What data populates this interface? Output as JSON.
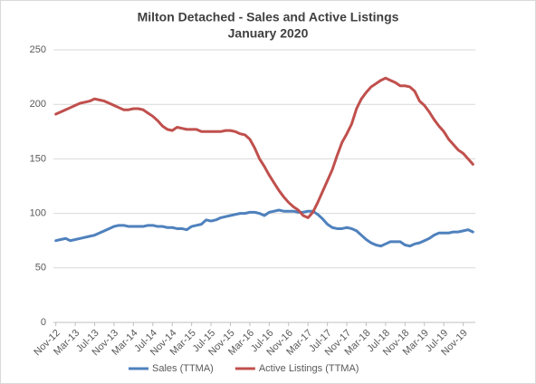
{
  "chart_data": {
    "type": "line",
    "title": "Milton Detached - Sales and Active Listings",
    "subtitle": "January 2020",
    "categories": [
      "Nov-12",
      null,
      null,
      null,
      "Mar-13",
      null,
      null,
      null,
      "Jul-13",
      null,
      null,
      null,
      "Nov-13",
      null,
      null,
      null,
      "Mar-14",
      null,
      null,
      null,
      "Jul-14",
      null,
      null,
      null,
      "Nov-14",
      null,
      null,
      null,
      "Mar-15",
      null,
      null,
      null,
      "Jul-15",
      null,
      null,
      null,
      "Nov-15",
      null,
      null,
      null,
      "Mar-16",
      null,
      null,
      null,
      "Jul-16",
      null,
      null,
      null,
      "Nov-16",
      null,
      null,
      null,
      "Mar-17",
      null,
      null,
      null,
      "Jul-17",
      null,
      null,
      null,
      "Nov-17",
      null,
      null,
      null,
      "Mar-18",
      null,
      null,
      null,
      "Jul-18",
      null,
      null,
      null,
      "Nov-18",
      null,
      null,
      null,
      "Mar-19",
      null,
      null,
      null,
      "Jul-19",
      null,
      null,
      null,
      "Nov-19",
      null,
      null
    ],
    "series": [
      {
        "name": "Sales (TTMA)",
        "color": "#4f81bd",
        "values": [
          75,
          76,
          77,
          75,
          76,
          77,
          78,
          79,
          80,
          82,
          84,
          86,
          88,
          89,
          89,
          88,
          88,
          88,
          88,
          89,
          89,
          88,
          88,
          87,
          87,
          86,
          86,
          85,
          88,
          89,
          90,
          94,
          93,
          94,
          96,
          97,
          98,
          99,
          100,
          100,
          101,
          101,
          100,
          98,
          101,
          102,
          103,
          102,
          102,
          102,
          101,
          101,
          102,
          102,
          99,
          95,
          90,
          87,
          86,
          86,
          87,
          86,
          84,
          80,
          76,
          73,
          71,
          70,
          72,
          74,
          74,
          74,
          71,
          70,
          72,
          73,
          75,
          77,
          80,
          82,
          82,
          82,
          83,
          83,
          84,
          85,
          83
        ]
      },
      {
        "name": "Active Listings (TTMA)",
        "color": "#c0504d",
        "values": [
          191,
          193,
          195,
          197,
          199,
          201,
          202,
          203,
          205,
          204,
          203,
          201,
          199,
          197,
          195,
          195,
          196,
          196,
          195,
          192,
          189,
          185,
          180,
          177,
          176,
          179,
          178,
          177,
          177,
          177,
          175,
          175,
          175,
          175,
          175,
          176,
          176,
          175,
          173,
          172,
          168,
          160,
          150,
          143,
          135,
          128,
          121,
          115,
          110,
          106,
          103,
          98,
          96,
          101,
          110,
          120,
          130,
          140,
          153,
          165,
          173,
          182,
          196,
          205,
          211,
          216,
          219,
          222,
          224,
          222,
          220,
          217,
          217,
          216,
          212,
          203,
          199,
          193,
          186,
          180,
          175,
          168,
          163,
          158,
          155,
          150,
          145
        ]
      }
    ],
    "ylim": [
      0,
      250
    ],
    "yticks": [
      0,
      50,
      100,
      150,
      200,
      250
    ],
    "grid": true,
    "legend": "bottom"
  }
}
